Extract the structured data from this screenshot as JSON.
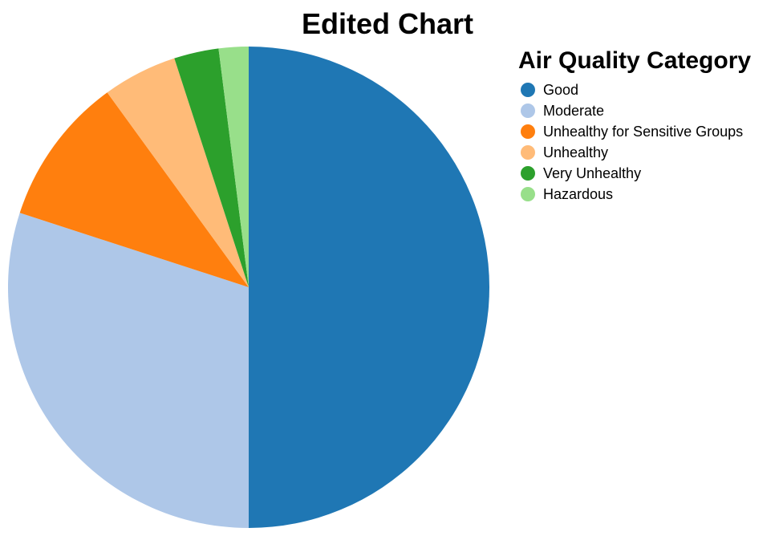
{
  "chart_data": {
    "type": "pie",
    "title": "Edited Chart",
    "legend": {
      "title": "Air Quality Category",
      "position": "top-right"
    },
    "slices": [
      {
        "label": "Good",
        "value": 50,
        "color": "#1f77b4"
      },
      {
        "label": "Moderate",
        "value": 30,
        "color": "#aec7e8"
      },
      {
        "label": "Unhealthy for Sensitive Groups",
        "value": 10,
        "color": "#ff7f0e"
      },
      {
        "label": "Unhealthy",
        "value": 5,
        "color": "#ffbb78"
      },
      {
        "label": "Very Unhealthy",
        "value": 3,
        "color": "#2ca02c"
      },
      {
        "label": "Hazardous",
        "value": 2,
        "color": "#98df8a"
      }
    ]
  }
}
